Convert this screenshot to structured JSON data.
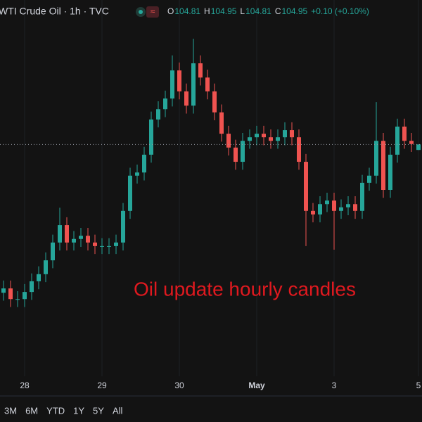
{
  "chart_data": {
    "type": "candlestick",
    "title": "WTI Crude Oil · 1h · TVC",
    "legend_labels": [
      "O",
      "H",
      "L",
      "C"
    ],
    "change_label": "+0.10 (+0.10%)",
    "annotation": "Oil update hourly candles",
    "categories": [
      null,
      null,
      null,
      "28",
      null,
      null,
      null,
      null,
      null,
      null,
      null,
      null,
      null,
      null,
      "29",
      null,
      null,
      null,
      null,
      null,
      null,
      null,
      null,
      null,
      null,
      "30",
      null,
      null,
      null,
      null,
      null,
      null,
      null,
      null,
      null,
      null,
      "May",
      null,
      null,
      null,
      null,
      null,
      null,
      null,
      null,
      null,
      null,
      "3",
      null,
      null,
      null,
      null,
      null,
      null,
      null,
      null,
      null,
      null,
      null,
      "5"
    ],
    "open": [
      101.2,
      101.31,
      101.04,
      101.04,
      101.22,
      101.49,
      101.67,
      102.02,
      102.47,
      102.91,
      102.47,
      102.56,
      102.64,
      102.47,
      102.38,
      102.38,
      102.38,
      102.47,
      103.27,
      104.16,
      104.24,
      104.69,
      105.58,
      105.84,
      106.11,
      106.82,
      106.29,
      105.93,
      107.0,
      106.64,
      106.29,
      105.76,
      105.22,
      104.87,
      104.51,
      105.04,
      105.13,
      105.22,
      105.13,
      105.04,
      105.13,
      105.31,
      105.13,
      104.51,
      103.27,
      103.18,
      103.44,
      103.53,
      103.27,
      103.36,
      103.44,
      103.27,
      103.98,
      104.16,
      105.04,
      103.8,
      104.69,
      105.4,
      105.04,
      104.81
    ],
    "high": [
      101.51,
      101.51,
      101.24,
      101.42,
      101.69,
      101.87,
      102.22,
      102.67,
      103.35,
      103.11,
      102.76,
      102.84,
      102.84,
      102.67,
      102.58,
      102.58,
      102.67,
      103.47,
      104.36,
      104.44,
      104.89,
      105.78,
      106.04,
      106.31,
      107.2,
      107.02,
      106.49,
      107.62,
      107.2,
      106.84,
      106.49,
      105.96,
      105.42,
      105.07,
      105.24,
      105.33,
      105.42,
      105.42,
      105.33,
      105.33,
      105.51,
      105.51,
      105.33,
      104.71,
      103.47,
      103.64,
      103.73,
      103.73,
      103.56,
      103.64,
      103.64,
      104.18,
      104.36,
      106.02,
      105.24,
      104.89,
      105.6,
      105.6,
      105.24,
      104.95
    ],
    "low": [
      101.0,
      100.84,
      100.84,
      100.84,
      101.02,
      101.29,
      101.47,
      101.82,
      102.27,
      102.27,
      102.27,
      102.36,
      102.27,
      102.18,
      102.18,
      102.18,
      102.18,
      102.27,
      103.07,
      103.96,
      104.04,
      104.49,
      105.38,
      105.64,
      105.91,
      106.09,
      105.73,
      105.73,
      106.44,
      106.09,
      105.56,
      105.02,
      104.67,
      104.31,
      104.31,
      104.84,
      104.93,
      104.93,
      104.84,
      104.84,
      104.93,
      104.93,
      104.31,
      102.38,
      102.98,
      102.98,
      103.24,
      102.29,
      103.07,
      103.16,
      103.07,
      103.07,
      103.78,
      103.96,
      103.6,
      103.6,
      104.49,
      104.84,
      104.76,
      104.81
    ],
    "close": [
      101.31,
      101.04,
      101.04,
      101.22,
      101.49,
      101.67,
      102.02,
      102.47,
      102.91,
      102.47,
      102.56,
      102.64,
      102.47,
      102.38,
      102.38,
      102.38,
      102.47,
      103.27,
      104.16,
      104.24,
      104.69,
      105.58,
      105.84,
      106.11,
      106.82,
      106.29,
      105.93,
      107.0,
      106.64,
      106.29,
      105.76,
      105.22,
      104.87,
      104.51,
      105.04,
      105.13,
      105.22,
      105.13,
      105.04,
      105.13,
      105.31,
      105.13,
      104.51,
      103.27,
      103.18,
      103.44,
      103.53,
      103.27,
      103.36,
      103.44,
      103.27,
      103.98,
      104.16,
      105.04,
      103.8,
      104.69,
      105.4,
      105.04,
      104.96,
      104.95
    ],
    "up_color": "#26a69a",
    "down_color": "#ef5350",
    "ylim": [
      99,
      108.6
    ],
    "last_price_line": true
  },
  "range_buttons": [
    "3M",
    "6M",
    "YTD",
    "1Y",
    "5Y",
    "All"
  ]
}
